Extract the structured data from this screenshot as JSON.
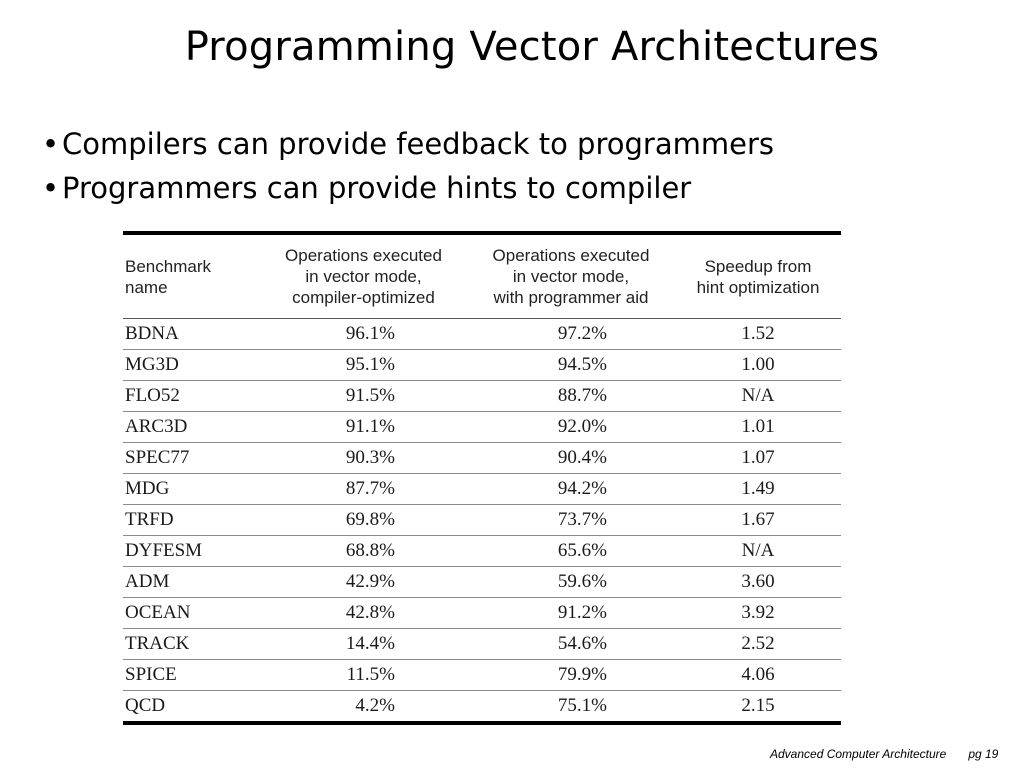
{
  "slide": {
    "title": "Programming Vector Architectures",
    "bullets": [
      "Compilers can provide feedback to programmers",
      "Programmers can provide hints to compiler"
    ]
  },
  "table": {
    "headers": [
      [
        "Benchmark",
        "name"
      ],
      [
        "Operations executed",
        "in vector mode,",
        "compiler-optimized"
      ],
      [
        "Operations executed",
        "in vector mode,",
        "with programmer aid"
      ],
      [
        "Speedup from",
        "hint optimization"
      ]
    ],
    "rows": [
      [
        "BDNA",
        "96.1%",
        "97.2%",
        "1.52"
      ],
      [
        "MG3D",
        "95.1%",
        "94.5%",
        "1.00"
      ],
      [
        "FLO52",
        "91.5%",
        "88.7%",
        "N/A"
      ],
      [
        "ARC3D",
        "91.1%",
        "92.0%",
        "1.01"
      ],
      [
        "SPEC77",
        "90.3%",
        "90.4%",
        "1.07"
      ],
      [
        "MDG",
        "87.7%",
        "94.2%",
        "1.49"
      ],
      [
        "TRFD",
        "69.8%",
        "73.7%",
        "1.67"
      ],
      [
        "DYFESM",
        "68.8%",
        "65.6%",
        "N/A"
      ],
      [
        "ADM",
        "42.9%",
        "59.6%",
        "3.60"
      ],
      [
        "OCEAN",
        "42.8%",
        "91.2%",
        "3.92"
      ],
      [
        "TRACK",
        "14.4%",
        "54.6%",
        "2.52"
      ],
      [
        "SPICE",
        "11.5%",
        "79.9%",
        "4.06"
      ],
      [
        "QCD",
        "4.2%",
        "75.1%",
        "2.15"
      ]
    ]
  },
  "footer": {
    "course": "Advanced Computer Architecture",
    "page": "pg 19"
  }
}
